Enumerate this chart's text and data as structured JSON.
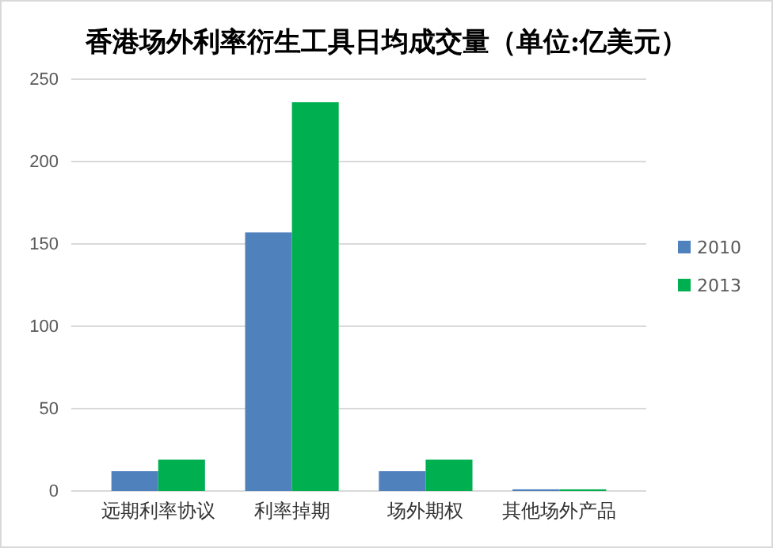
{
  "chart_data": {
    "type": "bar",
    "title": "香港场外利率衍生工具日均成交量（单位:亿美元）",
    "categories": [
      "远期利率协议",
      "利率掉期",
      "场外期权",
      "其他场外产品"
    ],
    "series": [
      {
        "name": "2010",
        "color": "#4f81bd",
        "values": [
          12,
          157,
          12,
          1
        ]
      },
      {
        "name": "2013",
        "color": "#00b050",
        "values": [
          19,
          236,
          19,
          1
        ]
      }
    ],
    "ylim": [
      0,
      250
    ],
    "yticks": [
      0,
      50,
      100,
      150,
      200,
      250
    ],
    "grid": "y",
    "legend": "right"
  }
}
